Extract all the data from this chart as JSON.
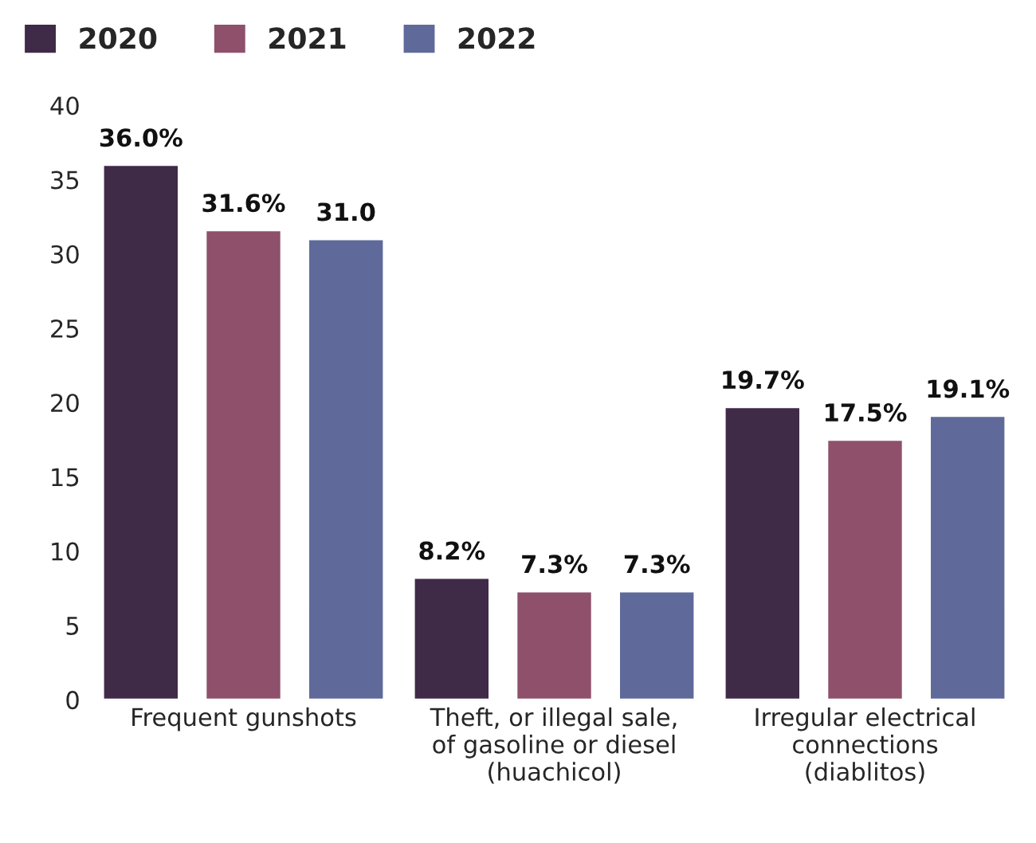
{
  "chart_data": {
    "type": "bar",
    "categories": [
      "Frequent gunshots",
      "Theft, or illegal sale,\nof gasoline or diesel\n(huachicol)",
      "Irregular electrical\nconnections\n(diablitos)"
    ],
    "series": [
      {
        "name": "2020",
        "color": "#3f2a47",
        "values": [
          36.0,
          8.2,
          19.7
        ],
        "value_labels": [
          "36.0%",
          "8.2%",
          "19.7%"
        ]
      },
      {
        "name": "2021",
        "color": "#8e506b",
        "values": [
          31.6,
          7.3,
          17.5
        ],
        "value_labels": [
          "31.6%",
          "7.3%",
          "17.5%"
        ]
      },
      {
        "name": "2022",
        "color": "#5f6a9a",
        "values": [
          31.0,
          7.3,
          19.1
        ],
        "value_labels": [
          "31.0",
          "7.3%",
          "19.1%"
        ]
      }
    ],
    "ylim": [
      0,
      40
    ],
    "yticks": [
      0,
      5,
      10,
      15,
      20,
      25,
      30,
      35,
      40
    ],
    "grid": false,
    "legend": "top left"
  }
}
